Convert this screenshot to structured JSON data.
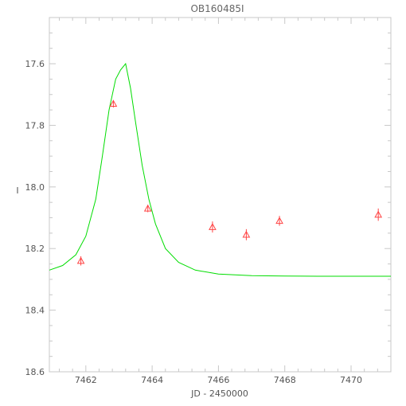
{
  "chart_data": {
    "type": "scatter",
    "title": "OB160485I",
    "xlabel": "JD - 2450000",
    "ylabel": "I",
    "xlim": [
      7460.9,
      7471.2
    ],
    "ylim": [
      18.6,
      17.45
    ],
    "y_inverted": true,
    "grid": false,
    "xticks": [
      7462,
      7464,
      7466,
      7468,
      7470
    ],
    "xtick_labels": [
      "7462",
      "7464",
      "7466",
      "7468",
      "7470"
    ],
    "yticks": [
      17.6,
      17.8,
      18.0,
      18.2,
      18.4,
      18.6
    ],
    "ytick_labels": [
      "17.6",
      "17.8",
      "18.0",
      "18.2",
      "18.4",
      "18.6"
    ],
    "series": [
      {
        "kind": "points",
        "marker": "triangle",
        "color": "#ff4444",
        "x": [
          7461.85,
          7462.83,
          7463.87,
          7465.82,
          7466.84,
          7467.84,
          7470.82
        ],
        "y": [
          18.24,
          17.73,
          18.07,
          18.13,
          18.155,
          18.11,
          18.09
        ],
        "yerr": [
          0.015,
          0.012,
          0.012,
          0.018,
          0.018,
          0.016,
          0.02
        ]
      },
      {
        "kind": "model",
        "color": "#00dd00",
        "x": [
          7460.9,
          7461.3,
          7461.7,
          7462.0,
          7462.3,
          7462.5,
          7462.7,
          7462.9,
          7463.05,
          7463.2,
          7463.35,
          7463.5,
          7463.7,
          7463.9,
          7464.1,
          7464.4,
          7464.8,
          7465.3,
          7466.0,
          7467.0,
          7468.0,
          7469.0,
          7470.0,
          7471.2
        ],
        "y": [
          18.27,
          18.255,
          18.22,
          18.16,
          18.04,
          17.9,
          17.75,
          17.65,
          17.62,
          17.6,
          17.68,
          17.79,
          17.93,
          18.04,
          18.12,
          18.2,
          18.245,
          18.27,
          18.283,
          18.288,
          18.289,
          18.29,
          18.29,
          18.29
        ]
      }
    ]
  },
  "colors": {
    "axis": "#c8c8c8",
    "text": "#555555",
    "points": "#ff4444",
    "model": "#00dd00"
  }
}
